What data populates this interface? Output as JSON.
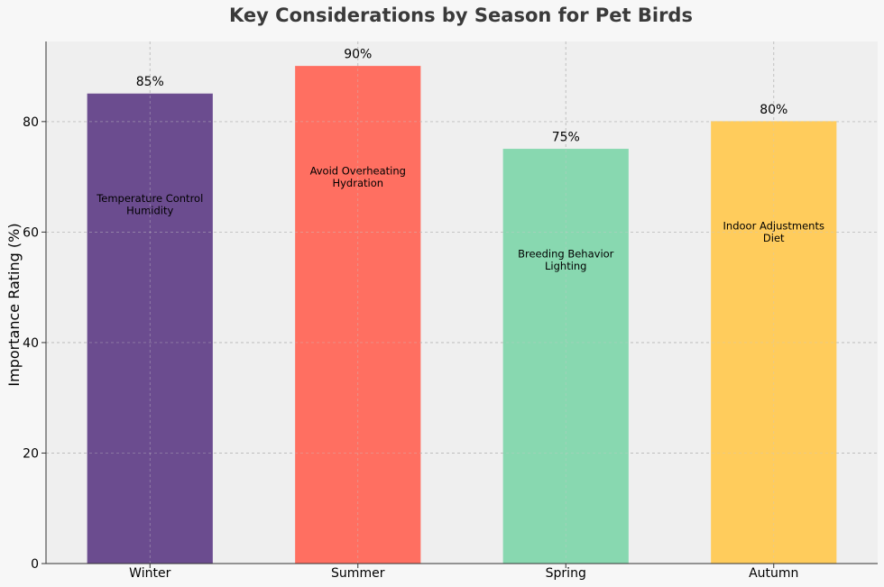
{
  "chart_data": {
    "type": "bar",
    "title": "Key Considerations by Season for Pet Birds",
    "xlabel": "",
    "ylabel": "Importance Rating (%)",
    "categories": [
      "Winter",
      "Summer",
      "Spring",
      "Autumn"
    ],
    "values": [
      85,
      90,
      75,
      80
    ],
    "value_labels": [
      "85%",
      "90%",
      "75%",
      "80%"
    ],
    "annotations": [
      [
        "Temperature Control",
        "Humidity"
      ],
      [
        "Avoid Overheating",
        "Hydration"
      ],
      [
        "Breeding Behavior",
        "Lighting"
      ],
      [
        "Indoor Adjustments",
        "Diet"
      ]
    ],
    "annotation_values": [
      65,
      70,
      55,
      60
    ],
    "colors": [
      "#6b4c8f",
      "#ff6f61",
      "#88d8b0",
      "#ffcc5c"
    ],
    "ylim": [
      0,
      94.5
    ],
    "yticks": [
      0,
      20,
      40,
      60,
      80
    ],
    "grid": true
  }
}
